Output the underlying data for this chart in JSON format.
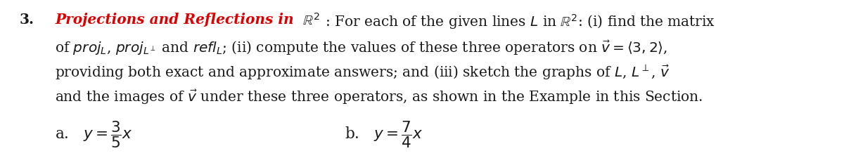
{
  "number": "3.",
  "red_text": "Projections and Reflections in",
  "line1_black": ": For each of the given lines $L$ in $\\mathbb{R}^2$: (i) find the matrix",
  "line2": "of $\\mathit{proj}_L$, $\\mathit{proj}_{L^\\perp}$ and $\\mathit{refl}_L$; (ii) compute the values of these three operators on $\\vec{v} = \\langle 3, 2\\rangle$,",
  "line3": "providing both exact and approximate answers; and (iii) sketch the graphs of $L$, $L^\\perp$, $\\vec{v}$",
  "line4": "and the images of $\\vec{v}$ under these three operators, as shown in the Example in this Section.",
  "sub_a": "a.\\quad $y = \\dfrac{3}{5}x$",
  "sub_b": "b.\\quad $y = \\dfrac{7}{4}x$",
  "background": "#ffffff",
  "text_color": "#1a1a1a",
  "red_color": "#dd0000",
  "fig_width": 12.0,
  "fig_height": 2.35,
  "dpi": 100
}
